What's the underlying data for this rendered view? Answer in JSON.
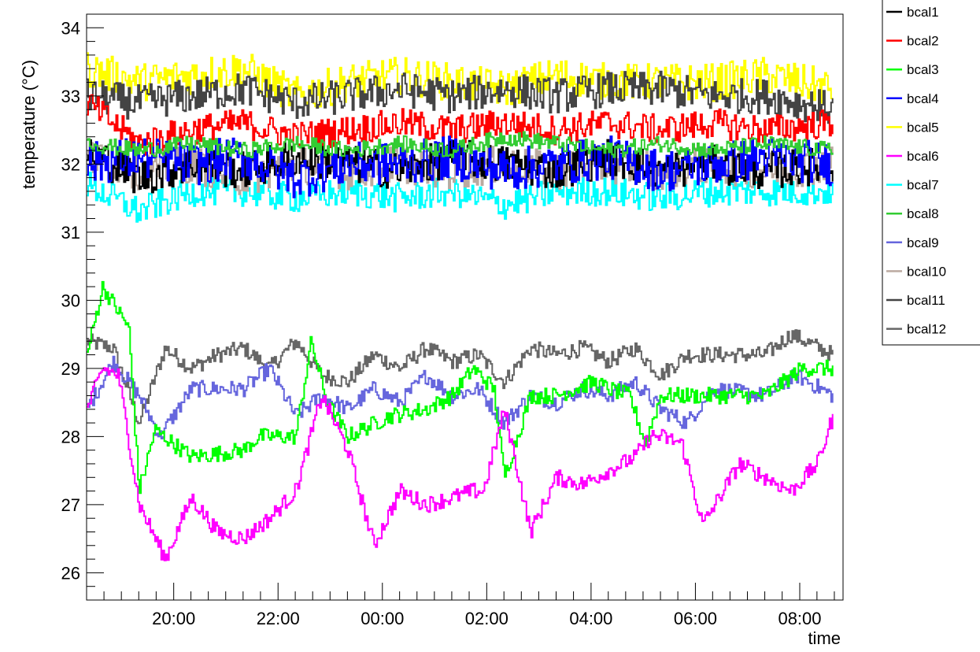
{
  "chart_data": {
    "type": "line",
    "title": "",
    "xlabel": "time",
    "ylabel": "temperature  (°C)",
    "x_ticks": [
      "20:00",
      "22:00",
      "00:00",
      "02:00",
      "04:00",
      "06:00",
      "08:00"
    ],
    "x_tick_hours": [
      1.67,
      3.67,
      5.67,
      7.67,
      9.67,
      11.67,
      13.67
    ],
    "y_ticks": [
      26,
      27,
      28,
      29,
      30,
      31,
      32,
      33,
      34
    ],
    "xlim_hours": [
      0,
      14.5
    ],
    "ylim": [
      25.6,
      34.2
    ],
    "grid": false,
    "legend_position": "top-right",
    "series": [
      {
        "name": "bcal1",
        "color": "#000000",
        "x": [
          0,
          1,
          2,
          3,
          4,
          5,
          6,
          7,
          8,
          9,
          10,
          11,
          12,
          13,
          14.3
        ],
        "values": [
          32.2,
          31.8,
          32.0,
          31.9,
          32.1,
          32.0,
          31.9,
          32.1,
          32.0,
          31.9,
          32.1,
          31.9,
          32.0,
          31.9,
          32.0
        ]
      },
      {
        "name": "bcal2",
        "color": "#ff0000",
        "x": [
          0,
          1,
          2,
          3,
          4,
          5,
          6,
          7,
          8,
          9,
          10,
          11,
          12,
          13,
          14.3
        ],
        "values": [
          32.9,
          32.3,
          32.5,
          32.6,
          32.4,
          32.5,
          32.6,
          32.5,
          32.6,
          32.5,
          32.6,
          32.5,
          32.6,
          32.5,
          32.6
        ]
      },
      {
        "name": "bcal3",
        "color": "#00ff00",
        "x": [
          0,
          0.3,
          0.8,
          1.0,
          1.3,
          2.0,
          3.0,
          3.3,
          4.0,
          4.3,
          4.6,
          5.0,
          5.8,
          6.5,
          7.0,
          7.4,
          7.8,
          8.0,
          8.5,
          9.0,
          9.7,
          10.0,
          10.4,
          10.7,
          11.0,
          12.0,
          13.0,
          13.7,
          14.3
        ],
        "values": [
          29.2,
          30.2,
          29.6,
          27.2,
          28.1,
          27.7,
          27.8,
          28.0,
          28.0,
          29.4,
          28.5,
          28.0,
          28.3,
          28.4,
          28.6,
          29.0,
          28.7,
          27.4,
          28.6,
          28.6,
          28.8,
          28.7,
          28.6,
          27.9,
          28.6,
          28.6,
          28.6,
          29.0,
          29.0
        ]
      },
      {
        "name": "bcal4",
        "color": "#0000ff",
        "x": [
          0,
          1,
          2,
          3,
          4,
          5,
          6,
          7,
          8,
          9,
          10,
          11,
          12,
          13,
          14.3
        ],
        "values": [
          32.0,
          32.1,
          32.0,
          32.1,
          31.8,
          32.0,
          32.0,
          32.1,
          31.9,
          32.0,
          32.1,
          31.9,
          32.0,
          32.1,
          32.0
        ]
      },
      {
        "name": "bcal5",
        "color": "#ffff00",
        "x": [
          0,
          1,
          2,
          3,
          4,
          5,
          6,
          7,
          8,
          9,
          10,
          11,
          12,
          13,
          14.3
        ],
        "values": [
          33.4,
          33.2,
          33.3,
          33.4,
          33.0,
          33.2,
          33.3,
          33.2,
          33.1,
          33.3,
          33.2,
          33.2,
          33.2,
          33.3,
          33.1
        ]
      },
      {
        "name": "bcal6",
        "color": "#ff00ff",
        "x": [
          0,
          0.3,
          0.6,
          1.0,
          1.5,
          2.0,
          2.5,
          3.0,
          3.5,
          4.0,
          4.5,
          5.0,
          5.5,
          6.0,
          6.5,
          7.0,
          7.4,
          7.6,
          7.8,
          8.0,
          8.5,
          9.0,
          9.5,
          10.0,
          10.5,
          10.8,
          11.0,
          11.4,
          11.8,
          12.5,
          13.0,
          13.5,
          14.0,
          14.3
        ],
        "values": [
          28.4,
          29.0,
          28.9,
          27.0,
          26.2,
          27.1,
          26.6,
          26.5,
          26.8,
          27.2,
          28.6,
          27.8,
          26.4,
          27.2,
          27.0,
          27.1,
          27.2,
          27.2,
          27.8,
          28.4,
          26.6,
          27.4,
          27.3,
          27.5,
          27.7,
          28.0,
          28.0,
          27.9,
          26.7,
          27.6,
          27.4,
          27.2,
          27.6,
          28.3
        ]
      },
      {
        "name": "bcal7",
        "color": "#00ffff",
        "x": [
          0,
          1,
          2,
          3,
          4,
          5,
          6,
          7,
          8,
          9,
          10,
          11,
          12,
          13,
          14.3
        ],
        "values": [
          31.7,
          31.3,
          31.6,
          31.6,
          31.5,
          31.6,
          31.5,
          31.6,
          31.4,
          31.6,
          31.6,
          31.5,
          31.6,
          31.6,
          31.6
        ]
      },
      {
        "name": "bcal8",
        "color": "#33cc33",
        "x": [
          0,
          1,
          2,
          3,
          4,
          5,
          6,
          7,
          8,
          9,
          10,
          11,
          12,
          13,
          14.3
        ],
        "values": [
          32.3,
          32.2,
          32.3,
          32.2,
          32.3,
          32.2,
          32.3,
          32.2,
          32.4,
          32.3,
          32.2,
          32.3,
          32.2,
          32.3,
          32.2
        ]
      },
      {
        "name": "bcal9",
        "color": "#6666dd",
        "x": [
          0,
          0.5,
          1.0,
          1.4,
          2.0,
          3.0,
          3.5,
          4.0,
          4.5,
          5.0,
          5.5,
          6.0,
          6.5,
          7.0,
          7.5,
          8.0,
          8.5,
          9.0,
          9.5,
          10.0,
          10.5,
          11.0,
          11.5,
          12.0,
          13.0,
          13.6,
          14.3
        ],
        "values": [
          28.4,
          29.1,
          28.6,
          28.0,
          28.7,
          28.7,
          29.0,
          28.3,
          28.6,
          28.4,
          28.7,
          28.5,
          28.9,
          28.6,
          28.7,
          28.2,
          28.6,
          28.5,
          28.7,
          28.6,
          28.8,
          28.4,
          28.2,
          28.7,
          28.6,
          28.9,
          28.6
        ]
      },
      {
        "name": "bcal10",
        "color": "#bbaaa0",
        "x": [
          0,
          1,
          2,
          3,
          4,
          5,
          6,
          7,
          8,
          9,
          10,
          11,
          12,
          13,
          14.3
        ],
        "values": [
          32.1,
          31.9,
          32.0,
          31.8,
          32.0,
          31.9,
          32.0,
          31.9,
          32.0,
          31.9,
          32.0,
          31.9,
          32.0,
          31.9,
          32.0
        ]
      },
      {
        "name": "bcal11",
        "color": "#444444",
        "x": [
          0,
          1,
          2,
          3,
          4,
          5,
          6,
          7,
          8,
          9,
          10,
          11,
          12,
          13,
          14.3
        ],
        "values": [
          33.0,
          32.9,
          33.0,
          33.1,
          32.9,
          33.0,
          33.1,
          33.0,
          33.1,
          33.0,
          33.1,
          33.1,
          33.0,
          33.0,
          32.8
        ]
      },
      {
        "name": "bcal12",
        "color": "#666666",
        "x": [
          0,
          0.5,
          1.0,
          1.5,
          2.0,
          2.5,
          3.0,
          3.5,
          4.0,
          4.5,
          5.0,
          5.5,
          6.0,
          6.5,
          7.0,
          7.5,
          8.0,
          8.5,
          9.0,
          9.5,
          10.0,
          10.5,
          11.0,
          11.5,
          12.0,
          12.5,
          13.0,
          13.5,
          14.3
        ],
        "values": [
          29.4,
          29.3,
          28.2,
          29.3,
          29.0,
          29.2,
          29.3,
          29.0,
          29.4,
          28.9,
          28.8,
          29.2,
          29.0,
          29.3,
          29.1,
          29.2,
          28.8,
          29.3,
          29.2,
          29.3,
          29.1,
          29.3,
          28.9,
          29.2,
          29.2,
          29.2,
          29.2,
          29.5,
          29.2
        ]
      }
    ]
  }
}
